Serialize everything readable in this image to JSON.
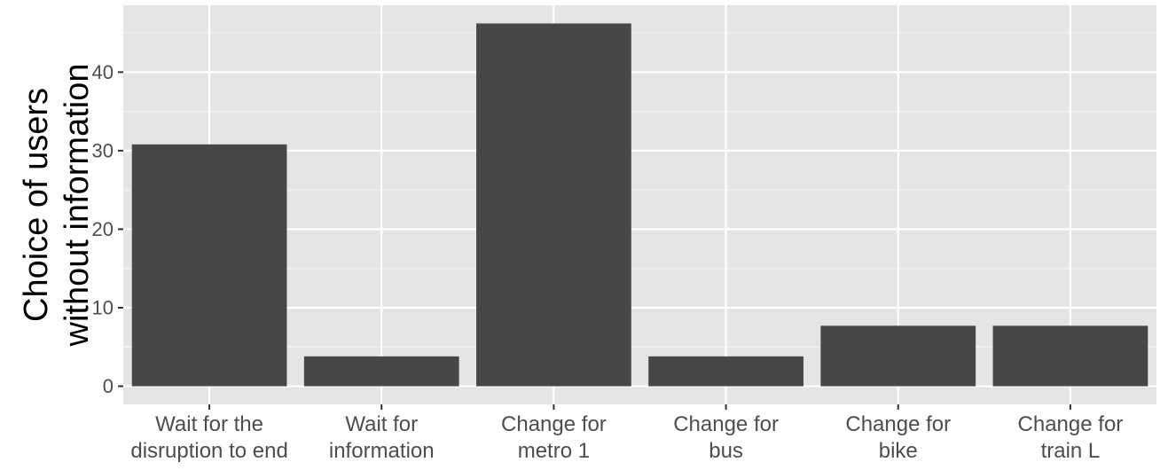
{
  "chart_data": {
    "type": "bar",
    "categories": [
      [
        "Wait for the",
        "disruption to end"
      ],
      [
        "Wait for",
        "information"
      ],
      [
        "Change for",
        "metro 1"
      ],
      [
        "Change for",
        "bus"
      ],
      [
        "Change for",
        "bike"
      ],
      [
        "Change for",
        "train L"
      ]
    ],
    "values": [
      30.8,
      3.8,
      46.2,
      3.8,
      7.7,
      7.7
    ],
    "title": "",
    "xlabel": "",
    "ylabel": [
      "Choice of users",
      "without information"
    ],
    "ylim": [
      -2.31,
      48.51
    ],
    "yticks": [
      0,
      10,
      20,
      30,
      40
    ],
    "grid": true,
    "colors": {
      "panel": "#e5e5e5",
      "grid_major": "#ffffff",
      "grid_minor": "#f2f2f2",
      "bar": "#474747",
      "tick_text": "#4d4d4d",
      "tick_mark": "#333333"
    }
  }
}
